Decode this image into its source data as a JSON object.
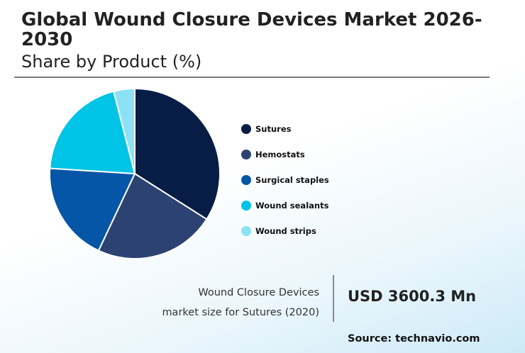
{
  "header": {
    "title": "Global Wound Closure Devices Market 2026-2030",
    "subtitle": "Share by Product (%)"
  },
  "chart_data": {
    "type": "pie",
    "title": "Global Wound Closure Devices Market 2026-2030",
    "subtitle": "Share by Product (%)",
    "categories": [
      "Sutures",
      "Hemostats",
      "Surgical staples",
      "Wound sealants",
      "Wound strips"
    ],
    "values": [
      34,
      23,
      19,
      20,
      4
    ],
    "colors": [
      "#071d45",
      "#2b4272",
      "#0556a6",
      "#00c4e6",
      "#8ce2f4"
    ],
    "legend_position": "right",
    "start_angle_deg": 0,
    "direction": "clockwise"
  },
  "stat": {
    "label_line1": "Wound Closure Devices",
    "label_line2": "market size for Sutures (2020)",
    "value": "USD 3600.3 Mn"
  },
  "source": "Source: technavio.com"
}
